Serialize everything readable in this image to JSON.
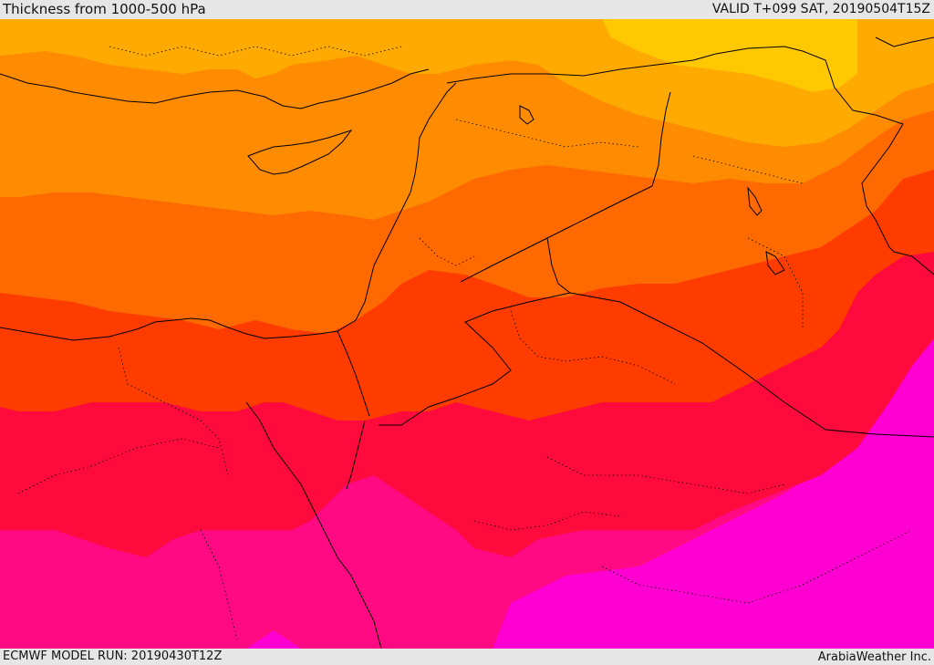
{
  "header": {
    "title": "Thickness from 1000-500 hPa",
    "valid": "VALID T+099 SAT, 20190504T15Z"
  },
  "footer": {
    "model_run": "ECMWF MODEL RUN: 20190430T12Z",
    "credit": "ArabiaWeather Inc."
  },
  "colors": {
    "band_1": "#ffc800",
    "band_2": "#ffaa00",
    "band_3": "#ff8c00",
    "band_4": "#ff6a00",
    "band_5": "#ff3c00",
    "band_6": "#ff0a3c",
    "band_7": "#ff0a82",
    "band_8": "#ff00d2",
    "coastline": "#000000",
    "border": "#000000"
  }
}
